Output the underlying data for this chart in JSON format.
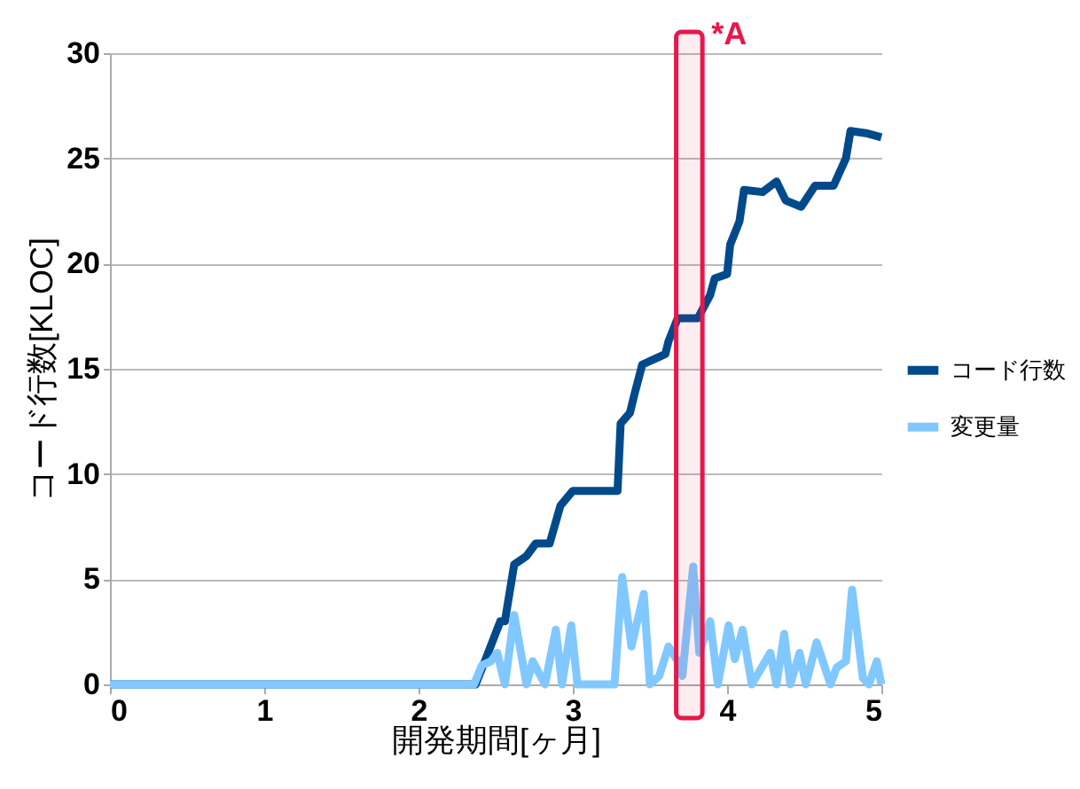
{
  "chart_data": {
    "type": "line",
    "xlabel": "開発期間[ヶ月]",
    "ylabel": "コード行数[KLOC]",
    "xlim": [
      0,
      5
    ],
    "xticks": [
      0,
      1,
      2,
      3,
      4,
      5
    ],
    "ylim": [
      0,
      30
    ],
    "yticks": [
      0,
      5,
      10,
      15,
      20,
      25,
      30
    ],
    "grid": "y",
    "legend": "right",
    "marker": "none",
    "line_style": "solid",
    "bands": [
      {
        "axis": "x",
        "from": 3.67,
        "to": 3.84,
        "label": "*A",
        "color": "#e8174a"
      }
    ],
    "series": [
      {
        "name": "コード行数",
        "color": "#004a8c",
        "x": [
          0,
          2.37,
          2.43,
          2.53,
          2.56,
          2.62,
          2.7,
          2.76,
          2.85,
          2.92,
          3.0,
          3.29,
          3.31,
          3.37,
          3.4,
          3.45,
          3.54,
          3.6,
          3.62,
          3.68,
          3.81,
          3.89,
          3.92,
          4.0,
          4.02,
          4.08,
          4.11,
          4.23,
          4.32,
          4.38,
          4.48,
          4.57,
          4.69,
          4.77,
          4.8,
          4.9,
          5.0
        ],
        "values": [
          0,
          0,
          1.1,
          3,
          3,
          5.7,
          6.1,
          6.7,
          6.7,
          8.5,
          9.2,
          9.2,
          12.4,
          12.9,
          13.8,
          15.2,
          15.5,
          15.7,
          16.3,
          17.4,
          17.4,
          18.5,
          19.3,
          19.5,
          20.9,
          22.0,
          23.5,
          23.4,
          23.9,
          23.0,
          22.7,
          23.7,
          23.7,
          25.0,
          26.3,
          26.2,
          26.0
        ]
      },
      {
        "name": "変更量",
        "color": "#80c8ff",
        "x": [
          0,
          2.36,
          2.41,
          2.47,
          2.51,
          2.56,
          2.62,
          2.7,
          2.74,
          2.82,
          2.89,
          2.93,
          2.99,
          3.03,
          3.27,
          3.32,
          3.38,
          3.46,
          3.5,
          3.56,
          3.62,
          3.68,
          3.71,
          3.78,
          3.82,
          3.89,
          3.94,
          4.01,
          4.05,
          4.1,
          4.16,
          4.28,
          4.32,
          4.37,
          4.41,
          4.47,
          4.51,
          4.58,
          4.67,
          4.71,
          4.77,
          4.81,
          4.88,
          4.92,
          4.97,
          5.0
        ],
        "values": [
          0,
          0,
          0.9,
          1.1,
          1.5,
          0,
          3.3,
          0,
          1.1,
          0,
          2.6,
          0,
          2.8,
          0,
          0,
          5.1,
          1.8,
          4.3,
          0,
          0.4,
          1.8,
          1.1,
          0.4,
          5.6,
          1.5,
          3.0,
          0,
          2.8,
          1.2,
          2.6,
          0,
          1.5,
          0,
          2.4,
          0,
          1.5,
          0,
          2.0,
          0,
          0.8,
          1.1,
          4.5,
          0.3,
          0,
          1.1,
          0
        ]
      }
    ]
  }
}
